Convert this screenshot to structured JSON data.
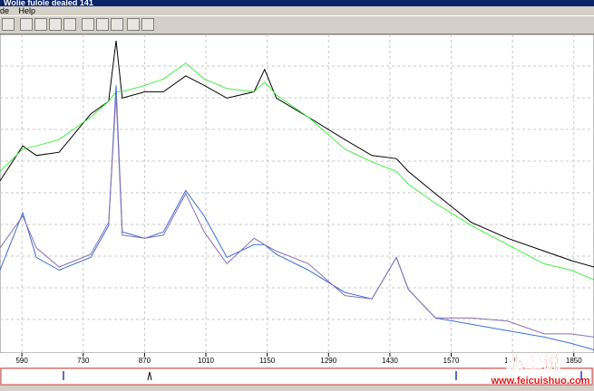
{
  "window": {
    "title": "Wolie fulole dealed 141",
    "menu": [
      "de",
      "Help"
    ]
  },
  "watermark": {
    "logo": "翡翠说",
    "url": "www.feicuishuo.com"
  },
  "chart_data": {
    "type": "line",
    "x": [
      540,
      592,
      623,
      675,
      747,
      788,
      805,
      819,
      871,
      913,
      964,
      1006,
      1058,
      1120,
      1144,
      1171,
      1244,
      1327,
      1389,
      1445,
      1472,
      1534,
      1616,
      1699,
      1782,
      1844,
      1896
    ],
    "series": [
      {
        "color": "#000000",
        "values": [
          54,
          65,
          62,
          63,
          75,
          79,
          98,
          80,
          82,
          82,
          87,
          84,
          80,
          82,
          89,
          80,
          74,
          67,
          62,
          61,
          57,
          50,
          41,
          36,
          32,
          29,
          27
        ]
      },
      {
        "color": "#44ee44",
        "values": [
          57,
          64,
          65,
          67,
          74,
          79,
          82,
          82,
          84,
          86,
          91,
          86,
          83,
          82,
          85,
          81,
          74,
          64,
          60,
          57,
          53,
          47,
          40,
          34,
          28,
          26,
          23
        ]
      },
      {
        "color": "#3a6fd8",
        "values": [
          26,
          44,
          30,
          26,
          30,
          40,
          84,
          38,
          36,
          38,
          51,
          43,
          30,
          34,
          34,
          31,
          26,
          19,
          17,
          30,
          20,
          11,
          9,
          7,
          5,
          3,
          1
        ]
      },
      {
        "color": "#8a6fb0",
        "values": [
          33,
          43,
          33,
          27,
          31,
          41,
          81,
          37,
          36,
          37,
          50,
          38,
          28,
          36,
          34,
          32,
          28,
          18,
          17,
          30,
          20,
          11,
          11,
          10,
          6,
          6,
          5
        ]
      }
    ],
    "xlim": [
      540,
      1896
    ],
    "ylim": [
      0,
      100
    ],
    "xticks": [
      590,
      730,
      870,
      1010,
      1150,
      1290,
      1430,
      1570,
      1710,
      1850
    ],
    "grid": true
  }
}
